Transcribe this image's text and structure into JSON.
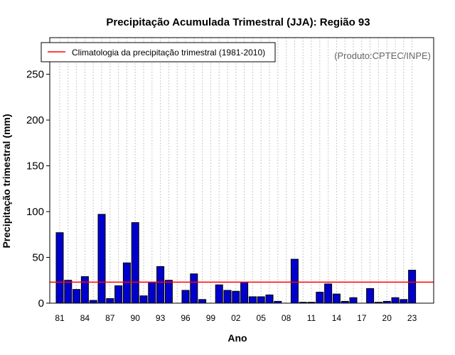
{
  "chart_data": {
    "type": "bar",
    "title": "Precipitação Acumulada Trimestral (JJA): Região 93",
    "xlabel": "Ano",
    "ylabel": "Precipitação trimestral (mm)",
    "credit": "(Produto:CPTEC/INPE)",
    "ylim": [
      0,
      290
    ],
    "yticks": [
      0,
      50,
      100,
      150,
      200,
      250
    ],
    "grid": "vertical dotted",
    "legend_position": "top-left",
    "years": [
      1981,
      1982,
      1983,
      1984,
      1985,
      1986,
      1987,
      1988,
      1989,
      1990,
      1991,
      1992,
      1993,
      1994,
      1995,
      1996,
      1997,
      1998,
      1999,
      2000,
      2001,
      2002,
      2003,
      2004,
      2005,
      2006,
      2007,
      2008,
      2009,
      2010,
      2011,
      2012,
      2013,
      2014,
      2015,
      2016,
      2017,
      2018,
      2019,
      2020,
      2021,
      2022,
      2023
    ],
    "xtick_labels": [
      "81",
      "84",
      "87",
      "90",
      "93",
      "96",
      "99",
      "02",
      "05",
      "08",
      "11",
      "14",
      "17",
      "20",
      "23"
    ],
    "values": [
      77,
      25,
      15,
      29,
      3,
      97,
      5,
      19,
      44,
      88,
      8,
      23,
      40,
      25,
      0,
      14,
      32,
      4,
      0,
      20,
      14,
      13,
      23,
      7,
      7,
      9,
      2,
      0,
      48,
      1,
      1,
      12,
      21,
      10,
      2,
      6,
      0,
      16,
      1,
      2,
      6,
      4,
      36
    ],
    "bar_color": "#0000cd",
    "series": [
      {
        "name": "Climatologia da precipitação trimestral (1981-2010)",
        "type": "hline",
        "value": 23,
        "color": "#ff0000"
      }
    ]
  }
}
